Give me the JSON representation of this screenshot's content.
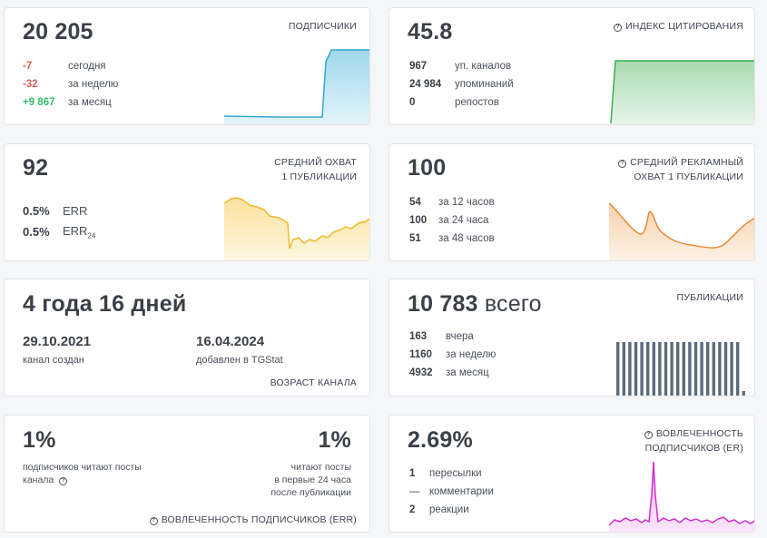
{
  "subscribers": {
    "value": "20 205",
    "label": "ПОДПИСЧИКИ",
    "rows": [
      {
        "v": "-7",
        "t": "сегодня"
      },
      {
        "v": "-32",
        "t": "за неделю"
      },
      {
        "v": "+9 867",
        "t": "за месяц"
      }
    ]
  },
  "citation": {
    "value": "45.8",
    "label": "ИНДЕКС ЦИТИРОВАНИЯ",
    "rows": [
      {
        "v": "967",
        "t": "уп. каналов"
      },
      {
        "v": "24 984",
        "t": "упоминаний"
      },
      {
        "v": "0",
        "t": "репостов"
      }
    ]
  },
  "reach": {
    "value": "92",
    "label1": "СРЕДНИЙ ОХВАТ",
    "label2": "1 ПУБЛИКАЦИИ",
    "rows": [
      {
        "v": "0.5%",
        "t": "ERR"
      },
      {
        "v": "0.5%",
        "t": "ERR",
        "sub": "24"
      }
    ]
  },
  "ad_reach": {
    "value": "100",
    "label1": "СРЕДНИЙ РЕКЛАМНЫЙ",
    "label2": "ОХВАТ 1 ПУБЛИКАЦИИ",
    "rows": [
      {
        "v": "54",
        "t": "за 12 часов"
      },
      {
        "v": "100",
        "t": "за 24 часа"
      },
      {
        "v": "51",
        "t": "за 48 часов"
      }
    ]
  },
  "age": {
    "value": "4 года 16 дней",
    "created_date": "29.10.2021",
    "created_label": "канал создан",
    "added_date": "16.04.2024",
    "added_label": "добавлен в TGStat",
    "label": "ВОЗРАСТ КАНАЛА"
  },
  "posts": {
    "value": "10 783",
    "value_suffix": "всего",
    "label": "ПУБЛИКАЦИИ",
    "rows": [
      {
        "v": "163",
        "t": "вчера"
      },
      {
        "v": "1160",
        "t": "за неделю"
      },
      {
        "v": "4932",
        "t": "за месяц"
      }
    ]
  },
  "err": {
    "left_value": "1%",
    "left_text1": "подписчиков читают посты",
    "left_text2": "канала",
    "right_value": "1%",
    "right_text1": "читают посты",
    "right_text2": "в первые 24 часа",
    "right_text3": "после публикации",
    "label": "ВОВЛЕЧЕННОСТЬ ПОДПИСЧИКОВ (ERR)"
  },
  "er": {
    "value": "2.69%",
    "label1": "ВОВЛЕЧЕННОСТЬ",
    "label2": "ПОДПИСЧИКОВ (ER)",
    "rows": [
      {
        "v": "1",
        "t": "пересылки"
      },
      {
        "v": "—",
        "t": "комментарии"
      },
      {
        "v": "2",
        "t": "реакции"
      }
    ]
  },
  "colors": {
    "subscribers": "#4fb8dc",
    "citation": "#3fae4f",
    "reach": "#f5c43a",
    "ad_reach": "#ec9a40",
    "posts": "#5d6b7a",
    "er": "#d633d6"
  }
}
